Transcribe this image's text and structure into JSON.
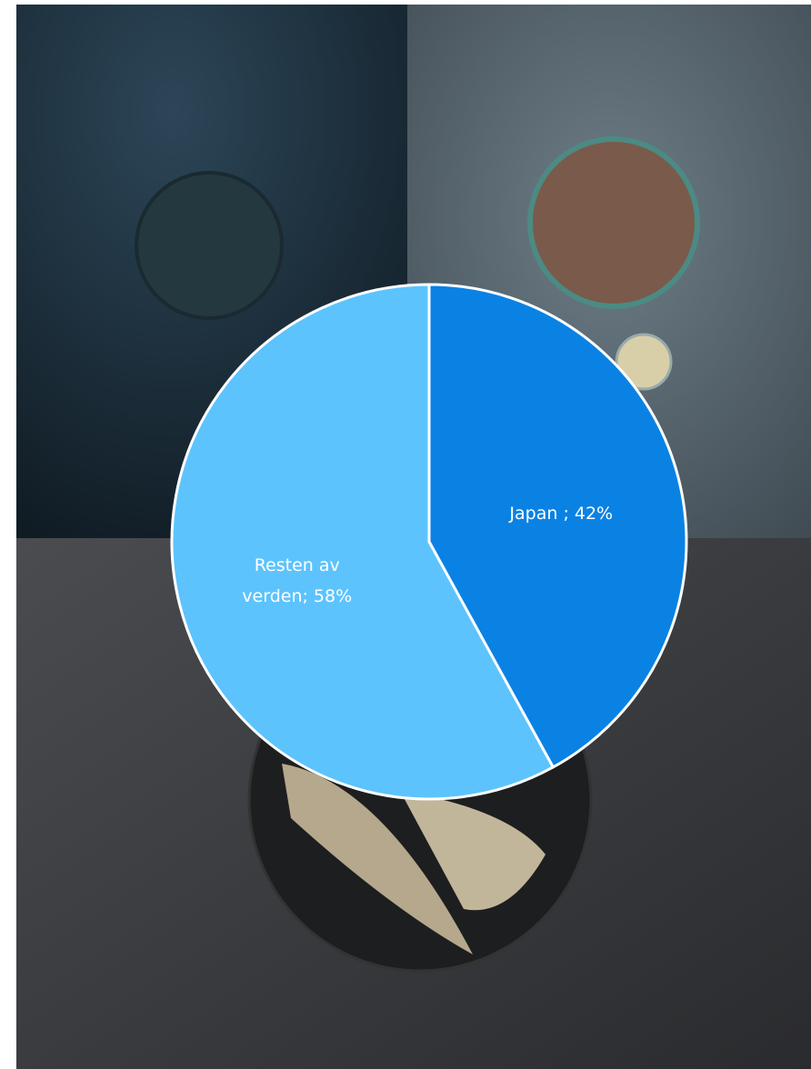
{
  "chart_data": {
    "type": "pie",
    "values": [
      42,
      58
    ],
    "value_labels": [
      "Japan ; 42%",
      "Resten av verden; 58%"
    ],
    "colors": [
      "#0a82e4",
      "#5dc3fd"
    ],
    "start_angle": 0,
    "direction": "clockwise"
  }
}
